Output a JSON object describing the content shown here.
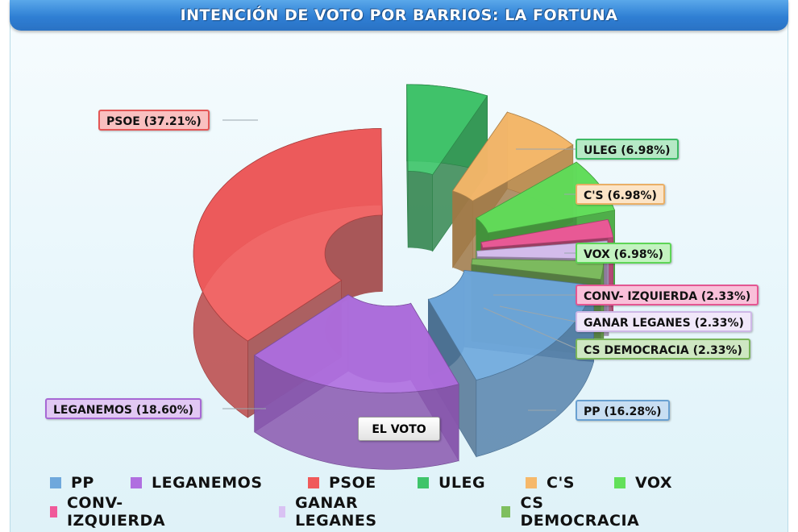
{
  "title": "INTENCIÓN DE VOTO POR BARRIOS: LA FORTUNA",
  "center_label": "EL VOTO",
  "chart_data": {
    "type": "pie",
    "title": "INTENCIÓN DE VOTO POR BARRIOS: LA FORTUNA",
    "center_label": "EL VOTO",
    "legend_placement": "bottom",
    "slices": [
      {
        "name": "PP",
        "value": 16.28,
        "label": "PP (16.28%)",
        "color": "#6fa8dc"
      },
      {
        "name": "LEGANEMOS",
        "value": 18.6,
        "label": "LEGANEMOS (18.60%)",
        "color": "#b06fe0"
      },
      {
        "name": "PSOE",
        "value": 37.21,
        "label": "PSOE (37.21%)",
        "color": "#f05a5a"
      },
      {
        "name": "ULEG",
        "value": 6.98,
        "label": "ULEG (6.98%)",
        "color": "#3fc46a"
      },
      {
        "name": "C'S",
        "value": 6.98,
        "label": "C'S (6.98%)",
        "color": "#f6b86a"
      },
      {
        "name": "VOX",
        "value": 6.98,
        "label": "VOX (6.98%)",
        "color": "#62e05a"
      },
      {
        "name": "CONV- IZQUIERDA",
        "value": 2.33,
        "label": "CONV- IZQUIERDA (2.33%)",
        "color": "#f05a9a"
      },
      {
        "name": "GANAR LEGANES",
        "value": 2.33,
        "label": "GANAR LEGANES (2.33%)",
        "color": "#d9c2f3"
      },
      {
        "name": "CS DEMOCRACIA",
        "value": 2.33,
        "label": "CS DEMOCRACIA (2.33%)",
        "color": "#7fbf5f"
      }
    ]
  }
}
